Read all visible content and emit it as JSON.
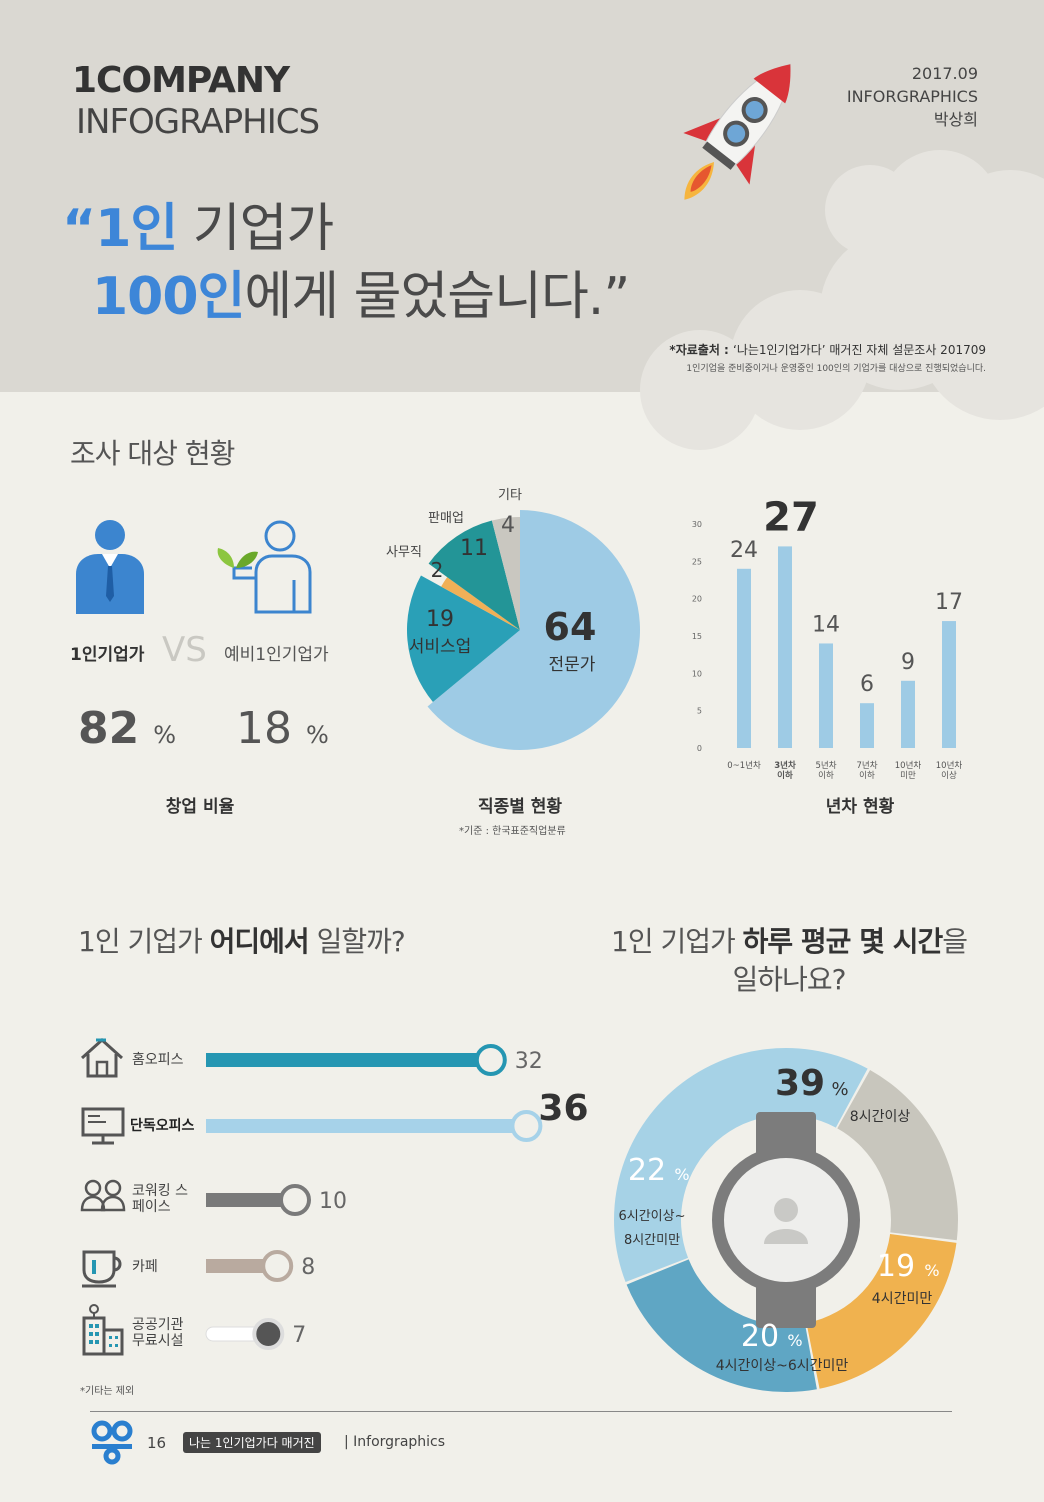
{
  "header": {
    "brand_line1": "1COMPANY",
    "brand_line2": "INFOGRAPHICS",
    "date": "2017.09",
    "date_sub": "INFORGRAPHICS",
    "author": "박상희",
    "quote_open": "“",
    "quote_l1_blue": "1인",
    "quote_l1_rest": " 기업가",
    "quote_l2_blue": "100인",
    "quote_l2_rest": "에게 물었습니다.”",
    "source_prefix": "*자료출처 : ",
    "source_text": "‘나는1인기업가다’ 매거진 자체 설문조사 201709",
    "source_sub": "1인기업을 준비중이거나 운영중인 100인의 기업가를 대상으로 진행되었습니다."
  },
  "survey": {
    "title": "조사 대상 현황",
    "ratio": {
      "label_a": "1인기업가",
      "vs": "VS",
      "label_b": "예비1인기업가",
      "value_a": "82",
      "value_b": "18",
      "unit": "%",
      "caption": "창업 비율"
    },
    "job_caption": "직종별 현황",
    "job_note": "*기준 : 한국표준직업분류",
    "year_caption": "년차 현황"
  },
  "work_place": {
    "title_pre": "1인 기업가 ",
    "title_bold": "어디에서",
    "title_post": " 일할까?",
    "note": "*기타는 제외"
  },
  "hours": {
    "title_pre": "1인 기업가 ",
    "title_bold": "하루 평균 몇 시간",
    "title_post": "을",
    "title_line2": "일하나요?"
  },
  "footer": {
    "page": "16",
    "magazine": "나는 1인기업가다 매거진",
    "section": "| Inforgraphics"
  },
  "colors": {
    "blue": "#3d86d8",
    "pie_expert": "#9ecbe5",
    "pie_service": "#2aa0b7",
    "pie_office": "#f0b057",
    "pie_sales": "#239597",
    "pie_other": "#c9c7c0",
    "bar": "#9ecbe5"
  },
  "chart_data": [
    {
      "type": "pie",
      "labels": [
        "전문가",
        "서비스업",
        "사무직",
        "판매업",
        "기타"
      ],
      "values": [
        64,
        19,
        2,
        11,
        4
      ]
    },
    {
      "type": "bar",
      "categories": [
        "0~1년차",
        "3년차 이하",
        "5년차 이하",
        "7년차 이하",
        "10년차 미만",
        "10년차 이상"
      ],
      "values": [
        24,
        27,
        14,
        6,
        9,
        17
      ],
      "yticks": [
        "0",
        "5",
        "10",
        "15",
        "20",
        "25",
        "30"
      ],
      "ylim": [
        0,
        30
      ]
    },
    {
      "type": "bar",
      "categories": [
        "홈오피스",
        "단독오피스",
        "코워킹 스페이스",
        "카페",
        "공공기관 무료시설"
      ],
      "values": [
        32,
        36,
        10,
        8,
        7
      ],
      "colors": [
        "#2596b2",
        "#a6d2e9",
        "#7a7a7a",
        "#b9aa9f",
        "#e6e6e3"
      ]
    },
    {
      "type": "pie",
      "labels": [
        "8시간이상",
        "4시간미만",
        "4시간이상~6시간미만",
        "6시간이상~8시간미만"
      ],
      "values": [
        39,
        19,
        20,
        22
      ],
      "unit": "%",
      "colors": [
        "#a6d2e6",
        "#c8c6bd",
        "#f0b24f",
        "#5fa6c4"
      ]
    }
  ]
}
